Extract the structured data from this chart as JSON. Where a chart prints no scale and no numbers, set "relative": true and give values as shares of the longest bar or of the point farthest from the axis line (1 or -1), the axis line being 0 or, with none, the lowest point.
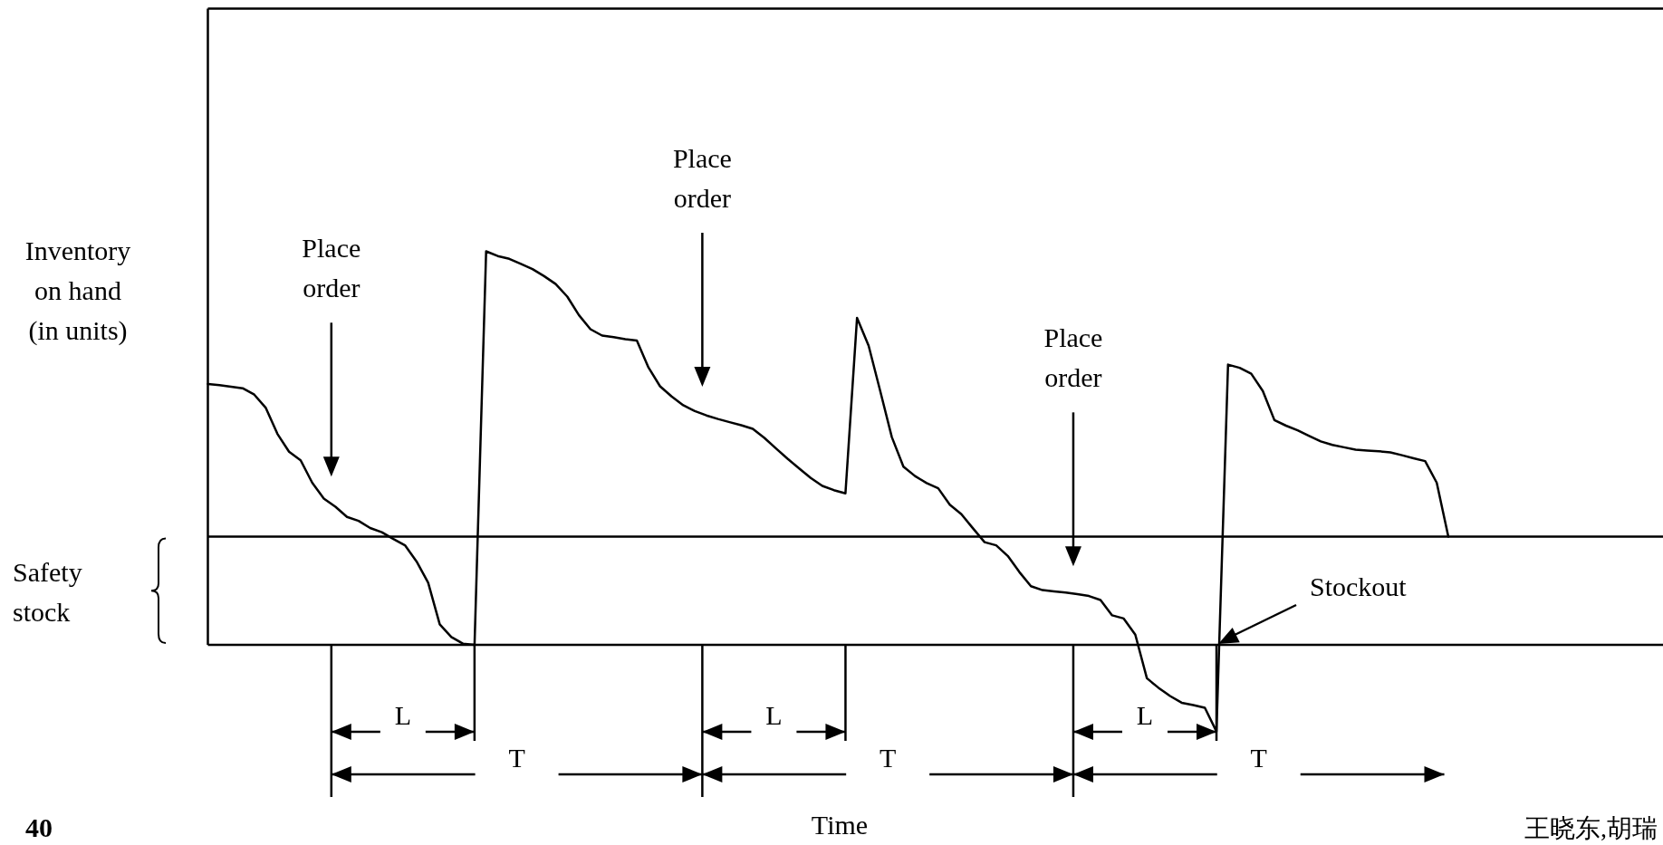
{
  "chart_data": {
    "type": "line",
    "relative": true,
    "xlabel": "Time",
    "ylabel": "Inventory on hand (in units)",
    "marker": "none",
    "line_style": "solid",
    "categories": [
      null,
      null,
      null,
      null,
      null,
      null,
      null,
      null,
      null,
      null,
      null,
      null,
      null,
      null,
      null,
      null,
      null,
      null,
      null,
      null,
      null,
      null,
      null,
      null,
      null,
      null,
      null,
      null,
      null,
      null,
      null,
      null,
      null,
      null,
      null,
      null,
      null,
      null,
      null,
      null,
      null,
      null,
      null,
      null,
      null,
      null,
      null,
      null,
      null,
      null,
      null,
      null,
      null,
      null,
      null,
      null,
      null,
      null,
      null,
      null,
      null,
      null,
      null,
      null,
      null,
      null,
      null,
      null,
      null,
      null,
      null,
      null,
      null,
      null,
      null,
      null,
      null,
      null,
      null,
      null,
      null,
      null,
      null,
      null,
      null,
      null,
      null,
      null,
      null,
      null,
      null,
      null,
      null,
      null,
      null,
      null,
      null,
      null,
      null,
      null,
      null,
      null,
      null,
      null,
      null,
      null,
      null,
      null
    ],
    "series": [
      {
        "color": "#000000",
        "values": [
          0.663,
          0.66,
          0.656,
          0.652,
          0.636,
          0.602,
          0.536,
          0.491,
          0.469,
          0.412,
          0.372,
          0.351,
          0.325,
          0.315,
          0.297,
          0.286,
          0.269,
          0.253,
          0.212,
          0.158,
          0.052,
          0.02,
          0.003,
          0.0,
          1.0,
          0.988,
          0.981,
          0.968,
          0.955,
          0.937,
          0.917,
          0.885,
          0.838,
          0.802,
          0.786,
          0.782,
          0.777,
          0.773,
          0.705,
          0.657,
          0.631,
          0.609,
          0.594,
          0.583,
          0.574,
          0.566,
          0.558,
          0.549,
          0.526,
          0.499,
          0.473,
          0.448,
          0.424,
          0.404,
          0.393,
          0.385,
          0.831,
          0.76,
          0.645,
          0.528,
          0.453,
          0.429,
          0.411,
          0.398,
          0.356,
          0.332,
          0.296,
          0.261,
          0.253,
          0.226,
          0.185,
          0.149,
          0.139,
          0.136,
          0.133,
          0.129,
          0.124,
          0.114,
          0.075,
          0.067,
          0.026,
          -0.085,
          -0.109,
          -0.13,
          -0.147,
          -0.153,
          -0.16,
          -0.22,
          0.712,
          0.704,
          0.689,
          0.645,
          0.571,
          0.557,
          0.545,
          0.531,
          0.517,
          0.508,
          0.502,
          0.496,
          0.494,
          0.492,
          0.489,
          0.482,
          0.474,
          0.467,
          0.412,
          0.275
        ]
      }
    ],
    "ref_lines": [
      {
        "axis": "y",
        "value": 0.275,
        "label": "Safety stock",
        "color": "#000000"
      }
    ],
    "annotations": [
      "Place\norder",
      "Place\norder",
      "Place\norder",
      "L",
      "L",
      "L",
      "T",
      "T",
      "T",
      "Stockout",
      "40",
      "王晓东,胡瑞"
    ]
  }
}
